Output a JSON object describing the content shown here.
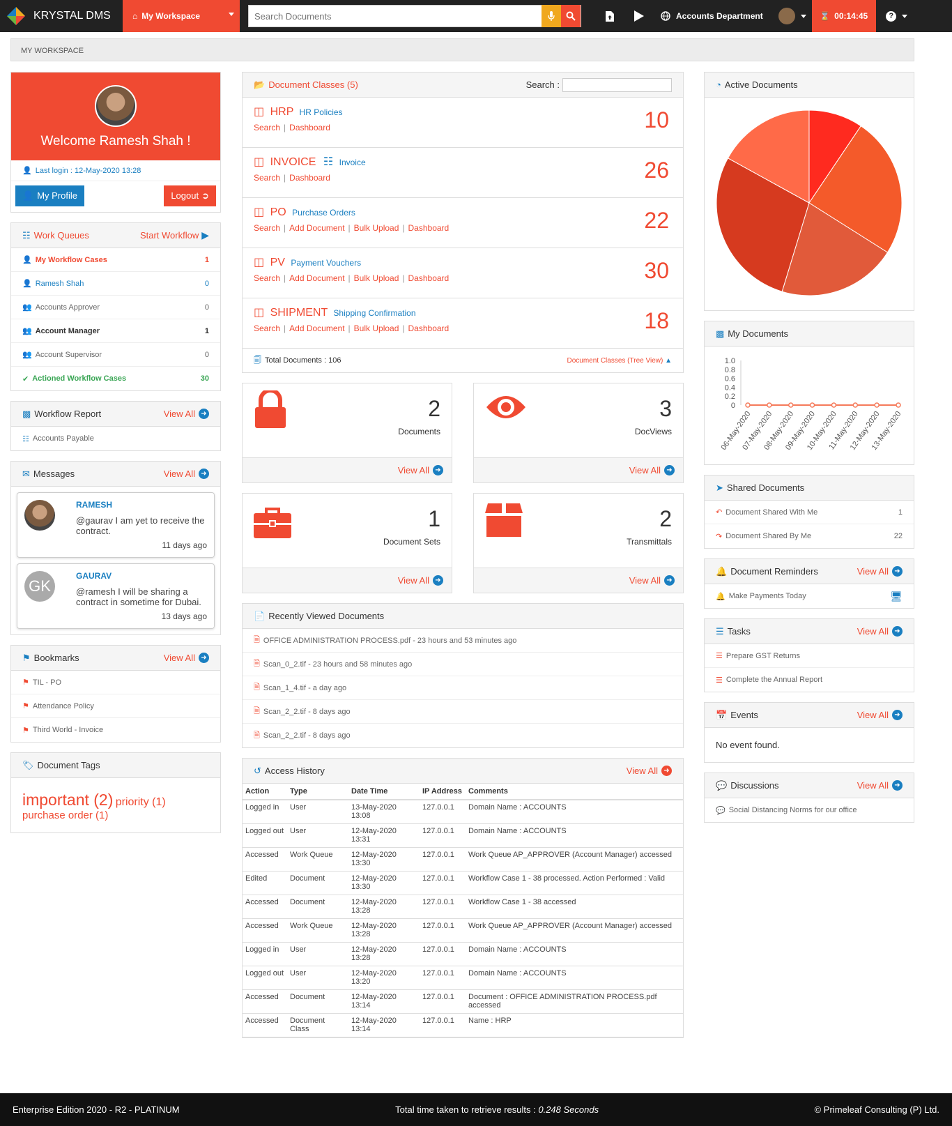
{
  "topbar": {
    "brand": "KRYSTAL DMS",
    "workspace": "My Workspace",
    "search_placeholder": "Search Documents",
    "department": "Accounts Department",
    "timer": "00:14:45"
  },
  "breadcrumb": "MY WORKSPACE",
  "left": {
    "welcome": "Welcome Ramesh Shah !",
    "last_login": "Last login : 12-May-2020 13:28",
    "my_profile": "My Profile",
    "logout": "Logout",
    "work_queues": {
      "title": "Work Queues",
      "action": "Start Workflow",
      "items": [
        {
          "label": "My Workflow Cases",
          "count": "1"
        },
        {
          "label": "Ramesh Shah",
          "count": "0"
        },
        {
          "label": "Accounts Approver",
          "count": "0"
        },
        {
          "label": "Account Manager",
          "count": "1"
        },
        {
          "label": "Account Supervisor",
          "count": "0"
        },
        {
          "label": "Actioned Workflow Cases",
          "count": "30"
        }
      ]
    },
    "workflow_report": {
      "title": "Workflow Report",
      "view_all": "View All",
      "item": "Accounts Payable"
    },
    "messages": {
      "title": "Messages",
      "view_all": "View All",
      "items": [
        {
          "name": "RAMESH",
          "text": "@gaurav I am yet to receive the contract.",
          "time": "11 days ago",
          "initials": ""
        },
        {
          "name": "GAURAV",
          "text": "@ramesh I will be sharing a contract in sometime for Dubai.",
          "time": "13 days ago",
          "initials": "GK"
        }
      ]
    },
    "bookmarks": {
      "title": "Bookmarks",
      "view_all": "View All",
      "items": [
        "TIL - PO",
        "Attendance Policy",
        "Third World - Invoice"
      ]
    },
    "tags": {
      "title": "Document Tags",
      "t1": "important (2)",
      "t2": "priority (1)",
      "t3": "purchase order (1)"
    }
  },
  "middle": {
    "doc_classes": {
      "title": "Document Classes (5)",
      "search_label": "Search :",
      "items": [
        {
          "code": "HRP",
          "desc": "HR Policies",
          "links": [
            "Search",
            "Dashboard"
          ],
          "count": "10"
        },
        {
          "code": "INVOICE",
          "desc": "Invoice",
          "links": [
            "Search",
            "Dashboard"
          ],
          "count": "26"
        },
        {
          "code": "PO",
          "desc": "Purchase Orders",
          "links": [
            "Search",
            "Add Document",
            "Bulk Upload",
            "Dashboard"
          ],
          "count": "22"
        },
        {
          "code": "PV",
          "desc": "Payment Vouchers",
          "links": [
            "Search",
            "Add Document",
            "Bulk Upload",
            "Dashboard"
          ],
          "count": "30"
        },
        {
          "code": "SHIPMENT",
          "desc": "Shipping Confirmation",
          "links": [
            "Search",
            "Add Document",
            "Bulk Upload",
            "Dashboard"
          ],
          "count": "18"
        }
      ],
      "total": "Total Documents : 106",
      "tree_view": "Document Classes (Tree View)"
    },
    "stats": [
      {
        "value": "2",
        "label": "Documents",
        "view_all": "View All"
      },
      {
        "value": "3",
        "label": "DocViews",
        "view_all": "View All"
      },
      {
        "value": "1",
        "label": "Document Sets",
        "view_all": "View All"
      },
      {
        "value": "2",
        "label": "Transmittals",
        "view_all": "View All"
      }
    ],
    "recent": {
      "title": "Recently Viewed Documents",
      "items": [
        "OFFICE ADMINISTRATION PROCESS.pdf - 23 hours and 53 minutes ago",
        "Scan_0_2.tif - 23 hours and 58 minutes ago",
        "Scan_1_4.tif - a day ago",
        "Scan_2_2.tif - 8 days ago",
        "Scan_2_2.tif - 8 days ago"
      ]
    },
    "access": {
      "title": "Access History",
      "view_all": "View All",
      "headers": [
        "Action",
        "Type",
        "Date Time",
        "IP Address",
        "Comments"
      ],
      "rows": [
        [
          "Logged in",
          "User",
          "13-May-2020 13:08",
          "127.0.0.1",
          "Domain Name : ACCOUNTS"
        ],
        [
          "Logged out",
          "User",
          "12-May-2020 13:31",
          "127.0.0.1",
          "Domain Name : ACCOUNTS"
        ],
        [
          "Accessed",
          "Work Queue",
          "12-May-2020 13:30",
          "127.0.0.1",
          "Work Queue AP_APPROVER (Account Manager) accessed"
        ],
        [
          "Edited",
          "Document",
          "12-May-2020 13:30",
          "127.0.0.1",
          "Workflow Case 1 - 38 processed. Action Performed : Valid"
        ],
        [
          "Accessed",
          "Document",
          "12-May-2020 13:28",
          "127.0.0.1",
          "Workflow Case 1 - 38 accessed"
        ],
        [
          "Accessed",
          "Work Queue",
          "12-May-2020 13:28",
          "127.0.0.1",
          "Work Queue AP_APPROVER (Account Manager) accessed"
        ],
        [
          "Logged in",
          "User",
          "12-May-2020 13:28",
          "127.0.0.1",
          "Domain Name : ACCOUNTS"
        ],
        [
          "Logged out",
          "User",
          "12-May-2020 13:20",
          "127.0.0.1",
          "Domain Name : ACCOUNTS"
        ],
        [
          "Accessed",
          "Document",
          "12-May-2020 13:14",
          "127.0.0.1",
          "Document : OFFICE ADMINISTRATION PROCESS.pdf accessed"
        ],
        [
          "Accessed",
          "Document Class",
          "12-May-2020 13:14",
          "127.0.0.1",
          "Name : HRP"
        ]
      ]
    }
  },
  "right": {
    "active_docs_title": "Active Documents",
    "my_docs_title": "My Documents",
    "shared": {
      "title": "Shared Documents",
      "items": [
        {
          "label": "Document Shared With Me",
          "count": "1"
        },
        {
          "label": "Document Shared By Me",
          "count": "22"
        }
      ]
    },
    "reminders": {
      "title": "Document Reminders",
      "view_all": "View All",
      "item": "Make Payments Today"
    },
    "tasks": {
      "title": "Tasks",
      "view_all": "View All",
      "items": [
        "Prepare GST Returns",
        "Complete the Annual Report"
      ]
    },
    "events": {
      "title": "Events",
      "view_all": "View All",
      "empty": "No event found."
    },
    "discussions": {
      "title": "Discussions",
      "view_all": "View All",
      "item": "Social Distancing Norms for our office"
    }
  },
  "chart_data": [
    {
      "type": "pie",
      "title": "Active Documents",
      "values": [
        10,
        26,
        22,
        30,
        18
      ],
      "colors": [
        "#ff2a1f",
        "#f45a2a",
        "#e15a3a",
        "#d63a1f",
        "#ff6a48"
      ]
    },
    {
      "type": "line",
      "title": "My Documents",
      "categories": [
        "06-May-2020",
        "07-May-2020",
        "08-May-2020",
        "09-May-2020",
        "10-May-2020",
        "11-May-2020",
        "12-May-2020",
        "13-May-2020"
      ],
      "values": [
        0,
        0,
        0,
        0,
        0,
        0,
        0,
        0
      ],
      "yticks": [
        "1.0",
        "0.8",
        "0.6",
        "0.4",
        "0.2",
        "0"
      ],
      "ylim": [
        0,
        1
      ],
      "color": "#f57a5a"
    }
  ],
  "footer": {
    "edition": "Enterprise Edition 2020 - R2 - PLATINUM",
    "timing_label": "Total time taken to retrieve results : ",
    "timing_value": "0.248 Seconds",
    "copyright": "© Primeleaf Consulting (P) Ltd."
  }
}
